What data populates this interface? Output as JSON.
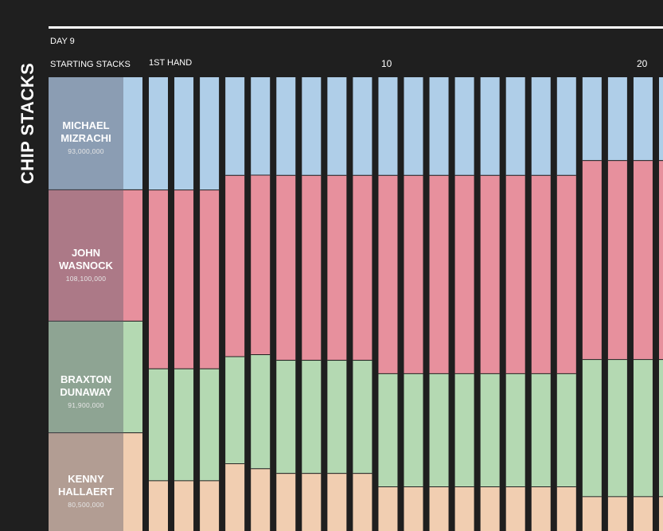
{
  "title": "CHIP STACKS",
  "day_label": "DAY 9",
  "starting_label": "STARTING STACKS",
  "first_hand_label": "1ST HAND",
  "tick_labels": [
    "10",
    "20"
  ],
  "players": [
    {
      "name_line1": "MICHAEL",
      "name_line2": "MIZRACHI",
      "stack": "93,000,000"
    },
    {
      "name_line1": "JOHN",
      "name_line2": "WASNOCK",
      "stack": "108,100,000"
    },
    {
      "name_line1": "BRAXTON",
      "name_line2": "DUNAWAY",
      "stack": "91,900,000"
    },
    {
      "name_line1": "KENNY",
      "name_line2": "HALLAERT",
      "stack": "80,500,000"
    }
  ],
  "chart_data": {
    "type": "bar",
    "stacked": true,
    "x": [
      0,
      1,
      2,
      3,
      4,
      5,
      6,
      7,
      8,
      9,
      10,
      11,
      12,
      13,
      14,
      15,
      16,
      17,
      18,
      19,
      20,
      21
    ],
    "series": [
      {
        "name": "MICHAEL MIZRACHI",
        "color": "#afcee8",
        "values": [
          93.0,
          93.0,
          93.0,
          93.0,
          81.0,
          81.0,
          81.0,
          81.0,
          81.0,
          81.0,
          81.0,
          81.0,
          81.0,
          81.0,
          81.0,
          81.0,
          81.0,
          81.0,
          69.0,
          69.0,
          69.0,
          69.0
        ]
      },
      {
        "name": "JOHN WASNOCK",
        "color": "#e7909d",
        "values": [
          108.1,
          147.0,
          147.0,
          147.0,
          149.0,
          148.0,
          152.0,
          152.0,
          152.0,
          152.0,
          163.0,
          163.0,
          163.0,
          163.0,
          163.0,
          163.0,
          163.0,
          163.0,
          164.0,
          164.0,
          164.0,
          164.0
        ]
      },
      {
        "name": "BRAXTON DUNAWAY",
        "color": "#b4d9b2",
        "values": [
          91.9,
          92.0,
          92.0,
          92.0,
          88.0,
          94.0,
          93.0,
          93.0,
          93.0,
          93.0,
          93.0,
          93.0,
          93.0,
          93.0,
          93.0,
          93.0,
          93.0,
          93.0,
          113.0,
          113.0,
          113.0,
          113.0
        ]
      },
      {
        "name": "KENNY HALLAERT",
        "color": "#f1ceb1",
        "values": [
          80.5,
          41.0,
          41.0,
          41.0,
          55.0,
          51.0,
          47.0,
          47.0,
          47.0,
          47.0,
          36.0,
          36.0,
          36.0,
          36.0,
          36.0,
          36.0,
          36.0,
          36.0,
          28.0,
          28.0,
          28.0,
          28.0
        ]
      }
    ],
    "ylabel": "",
    "xlabel": "",
    "grid": false,
    "legend": "none"
  }
}
